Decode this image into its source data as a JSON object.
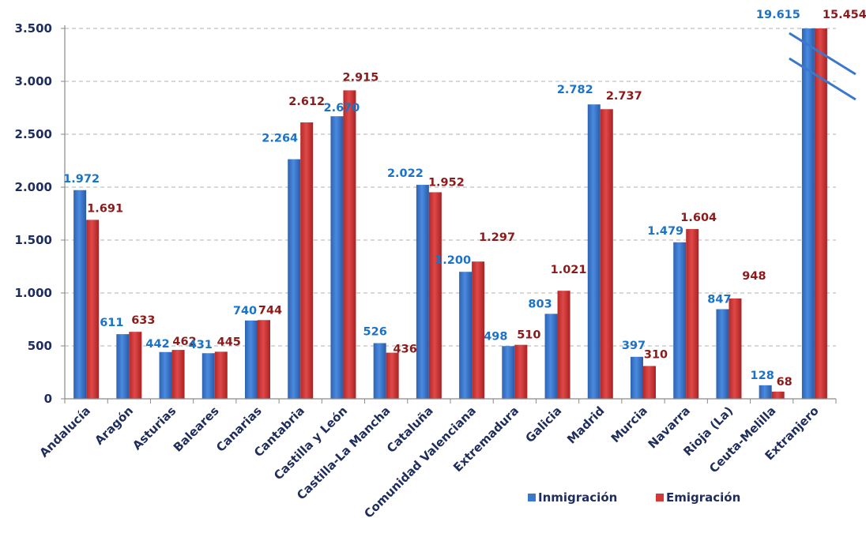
{
  "chart_data": {
    "type": "bar",
    "categories": [
      "Andalucía",
      "Aragón",
      "Asturias",
      "Baleares",
      "Canarias",
      "Cantabria",
      "Castilla y León",
      "Castilla-La Mancha",
      "Cataluña",
      "Comunidad Valenciana",
      "Extremadura",
      "Galicia",
      "Madrid",
      "Murcia",
      "Navarra",
      "Rioja (La)",
      "Ceuta-Melilla",
      "Extranjero"
    ],
    "series": [
      {
        "name": "Inmigración",
        "color": "#3a78cc",
        "values": [
          1972,
          611,
          442,
          431,
          740,
          2264,
          2670,
          526,
          2022,
          1200,
          498,
          803,
          2782,
          397,
          1479,
          847,
          128,
          19615
        ],
        "labels": [
          "1.972",
          "611",
          "442",
          "431",
          "740",
          "2.264",
          "2.670",
          "526",
          "2.022",
          "1.200",
          "498",
          "803",
          "2.782",
          "397",
          "1.479",
          "847",
          "128",
          "19.615"
        ]
      },
      {
        "name": "Emigración",
        "color": "#d23a3a",
        "values": [
          1691,
          633,
          462,
          445,
          744,
          2612,
          2915,
          436,
          1952,
          1297,
          510,
          1021,
          2737,
          310,
          1604,
          948,
          68,
          15454
        ],
        "labels": [
          "1.691",
          "633",
          "462",
          "445",
          "744",
          "2.612",
          "2.915",
          "436",
          "1.952",
          "1.297",
          "510",
          "1.021",
          "2.737",
          "310",
          "1.604",
          "948",
          "68",
          "15.454"
        ]
      }
    ],
    "ylim": [
      0,
      3500
    ],
    "yticks": [
      0,
      500,
      1000,
      1500,
      2000,
      2500,
      3000,
      3500
    ],
    "ytick_labels": [
      "0",
      "500",
      "1.000",
      "1.500",
      "2.000",
      "2.500",
      "3.000",
      "3.500"
    ],
    "axis_break": "Extranjero",
    "grid": true,
    "legend_position": "bottom-right",
    "label_colors": {
      "Inmigración": "#1a73c7",
      "Emigración": "#8b1a1a"
    }
  }
}
